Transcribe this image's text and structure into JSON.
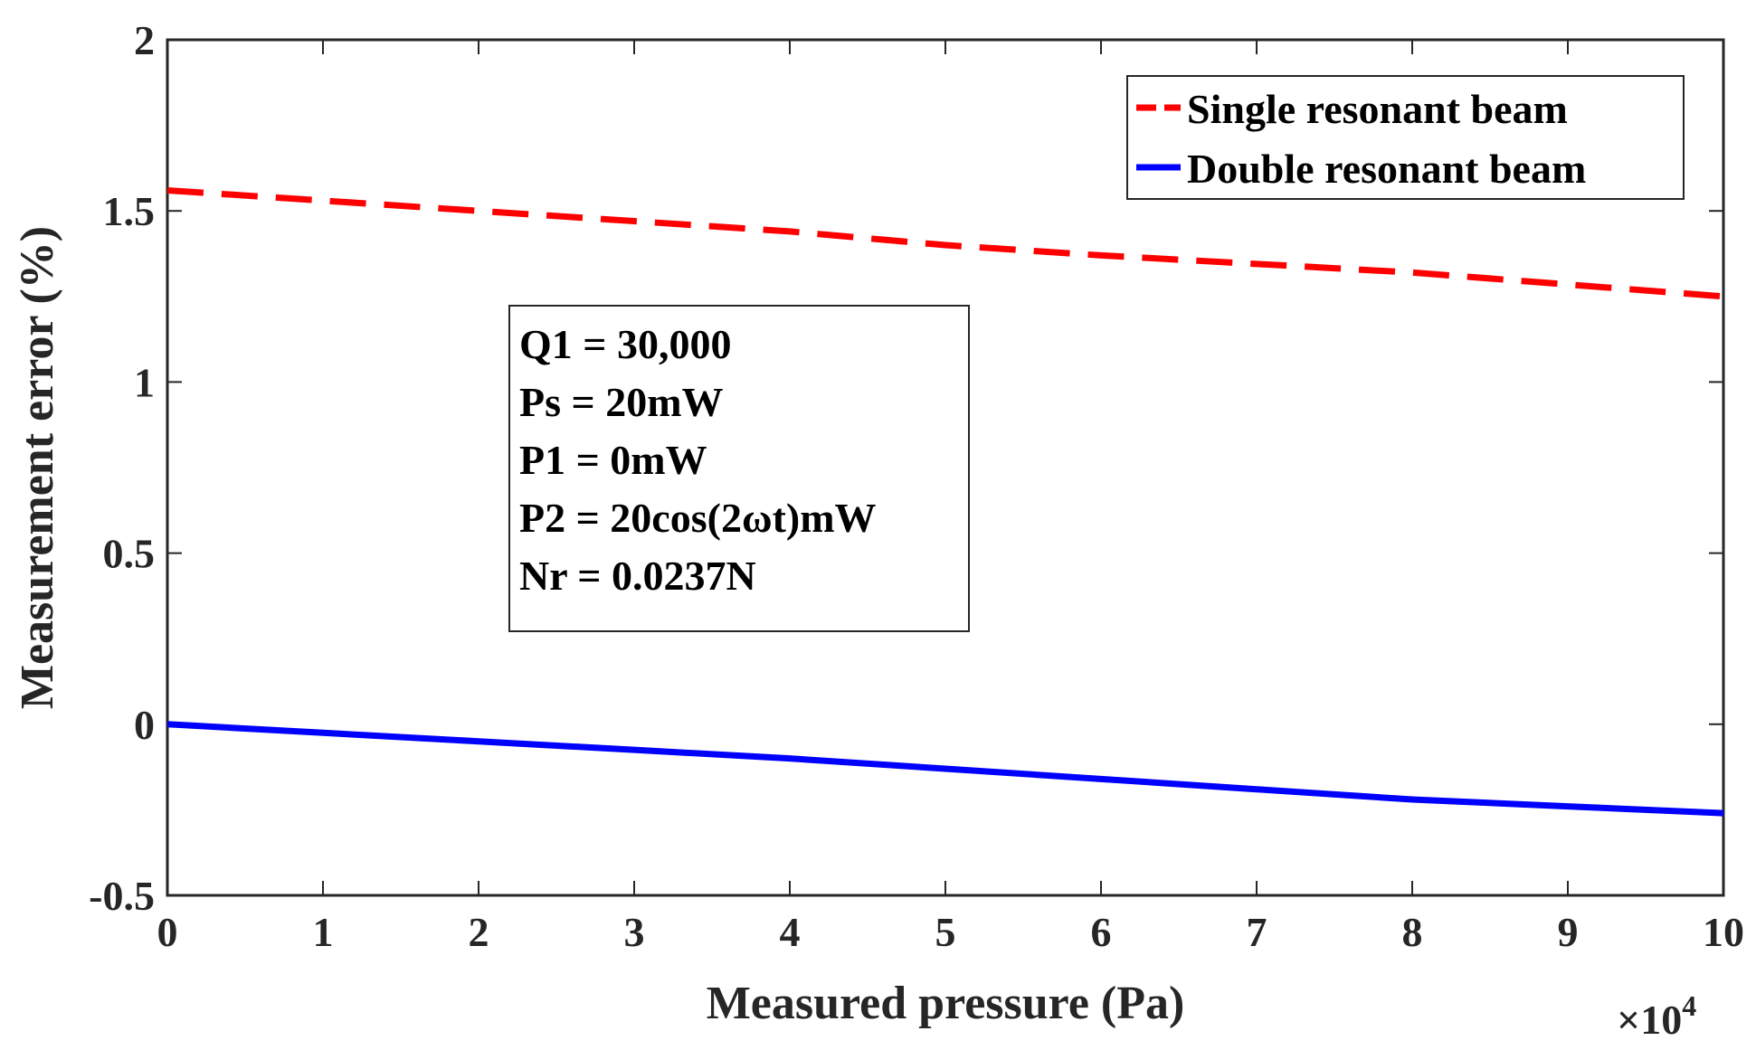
{
  "chart_data": {
    "type": "line",
    "xlabel": "Measured pressure (Pa)",
    "ylabel": "Measurement error (%)",
    "x_exponent_label": "×10",
    "x_exponent_power": "4",
    "xlim": [
      0,
      10
    ],
    "ylim": [
      -0.5,
      2
    ],
    "x_ticks": [
      0,
      1,
      2,
      3,
      4,
      5,
      6,
      7,
      8,
      9,
      10
    ],
    "x_tick_labels": [
      "0",
      "1",
      "2",
      "3",
      "4",
      "5",
      "6",
      "7",
      "8",
      "9",
      "10"
    ],
    "y_ticks": [
      -0.5,
      0,
      0.5,
      1,
      1.5,
      2
    ],
    "y_tick_labels": [
      "-0.5",
      "0",
      "0.5",
      "1",
      "1.5",
      "2"
    ],
    "legend_position": "top-right",
    "series": [
      {
        "name": "Single resonant beam",
        "color": "#ff0000",
        "style": "dashed",
        "x": [
          0,
          1,
          2,
          3,
          4,
          5,
          6,
          7,
          8,
          9,
          10
        ],
        "y": [
          1.56,
          1.53,
          1.5,
          1.47,
          1.44,
          1.4,
          1.37,
          1.345,
          1.32,
          1.285,
          1.25
        ]
      },
      {
        "name": "Double resonant beam",
        "color": "#0000ff",
        "style": "solid",
        "x": [
          0,
          1,
          2,
          3,
          4,
          5,
          6,
          7,
          8,
          9,
          10
        ],
        "y": [
          0,
          -0.025,
          -0.05,
          -0.075,
          -0.1,
          -0.13,
          -0.16,
          -0.19,
          -0.22,
          -0.24,
          -0.26
        ]
      }
    ],
    "annotation_lines": [
      "Q1 = 30,000",
      "Ps = 20mW",
      "P1 = 0mW",
      "P2 = 20cos(2ωt)mW",
      "Nr = 0.0237N"
    ]
  }
}
